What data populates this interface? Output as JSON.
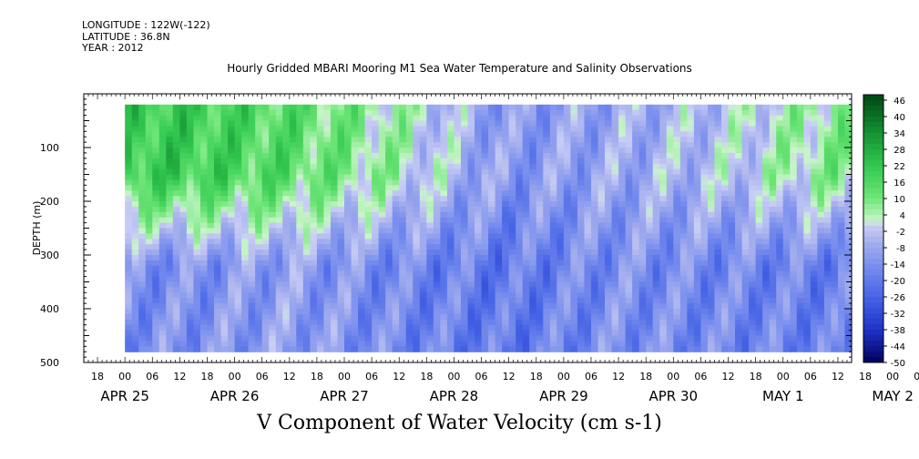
{
  "header": {
    "longitude": "LONGITUDE : 122W(-122)",
    "latitude": "LATITUDE : 36.8N",
    "year": "YEAR : 2012",
    "title": "Hourly Gridded MBARI Mooring M1 Sea Water Temperature and Salinity Observations"
  },
  "chart_data": {
    "type": "heatmap",
    "title": "Hourly Gridded MBARI Mooring M1 Sea Water Temperature and Salinity Observations",
    "variable_label": "V Component of Water Velocity (cm s-1)",
    "ylabel": "DEPTH (m)",
    "ylim": [
      500,
      0
    ],
    "y_ticks": [
      100,
      200,
      300,
      400,
      500
    ],
    "x_range_hours_from_apr25_00": [
      -9,
      159
    ],
    "x_hour_ticks": [
      "18",
      "00",
      "06",
      "12",
      "18",
      "00",
      "06",
      "12",
      "18",
      "00",
      "06",
      "12",
      "18",
      "00",
      "06",
      "12",
      "18",
      "00",
      "06",
      "12",
      "18",
      "00",
      "06",
      "12",
      "18",
      "00",
      "06",
      "12",
      "18",
      "00",
      "06",
      "12"
    ],
    "x_day_labels": [
      "APR 25",
      "APR 26",
      "APR 27",
      "APR 28",
      "APR 29",
      "APR 30",
      "MAY  1",
      "MAY  2"
    ],
    "colorbar": {
      "levels": [
        48,
        46,
        44,
        42,
        40,
        38,
        36,
        34,
        32,
        30,
        28,
        26,
        24,
        22,
        20,
        18,
        16,
        14,
        12,
        10,
        8,
        6,
        4,
        2,
        0,
        -2,
        -4,
        -6,
        -8,
        -10,
        -12,
        -14,
        -16,
        -18,
        -20,
        -22,
        -24,
        -26,
        -28,
        -30,
        -32,
        -34,
        -36,
        -38,
        -40,
        -42,
        -44,
        -46,
        -48,
        -50
      ],
      "tick_labels": [
        "46",
        "40",
        "34",
        "28",
        "22",
        "16",
        "10",
        "4",
        "-2",
        "-8",
        "-14",
        "-20",
        "-26",
        "-32",
        "-38",
        "-44",
        "-50"
      ]
    },
    "grid": false,
    "legend": "right",
    "data_description_depth_means": [
      {
        "day": "APR 25",
        "shallow_0_200m": 20,
        "deep_300_480m": -14
      },
      {
        "day": "APR 26",
        "shallow_0_200m": 14,
        "deep_300_480m": -10
      },
      {
        "day": "APR 27",
        "shallow_0_200m": 4,
        "deep_300_480m": -16
      },
      {
        "day": "APR 28",
        "shallow_0_200m": -12,
        "deep_300_480m": -20
      },
      {
        "day": "APR 29",
        "shallow_0_200m": -8,
        "deep_300_480m": -14
      },
      {
        "day": "APR 30",
        "shallow_0_200m": -2,
        "deep_300_480m": -16
      },
      {
        "day": "MAY  1",
        "shallow_0_200m": 8,
        "deep_300_480m": -18
      },
      {
        "day": "MAY  2",
        "shallow_0_200m": -4,
        "deep_300_480m": -14
      }
    ]
  }
}
